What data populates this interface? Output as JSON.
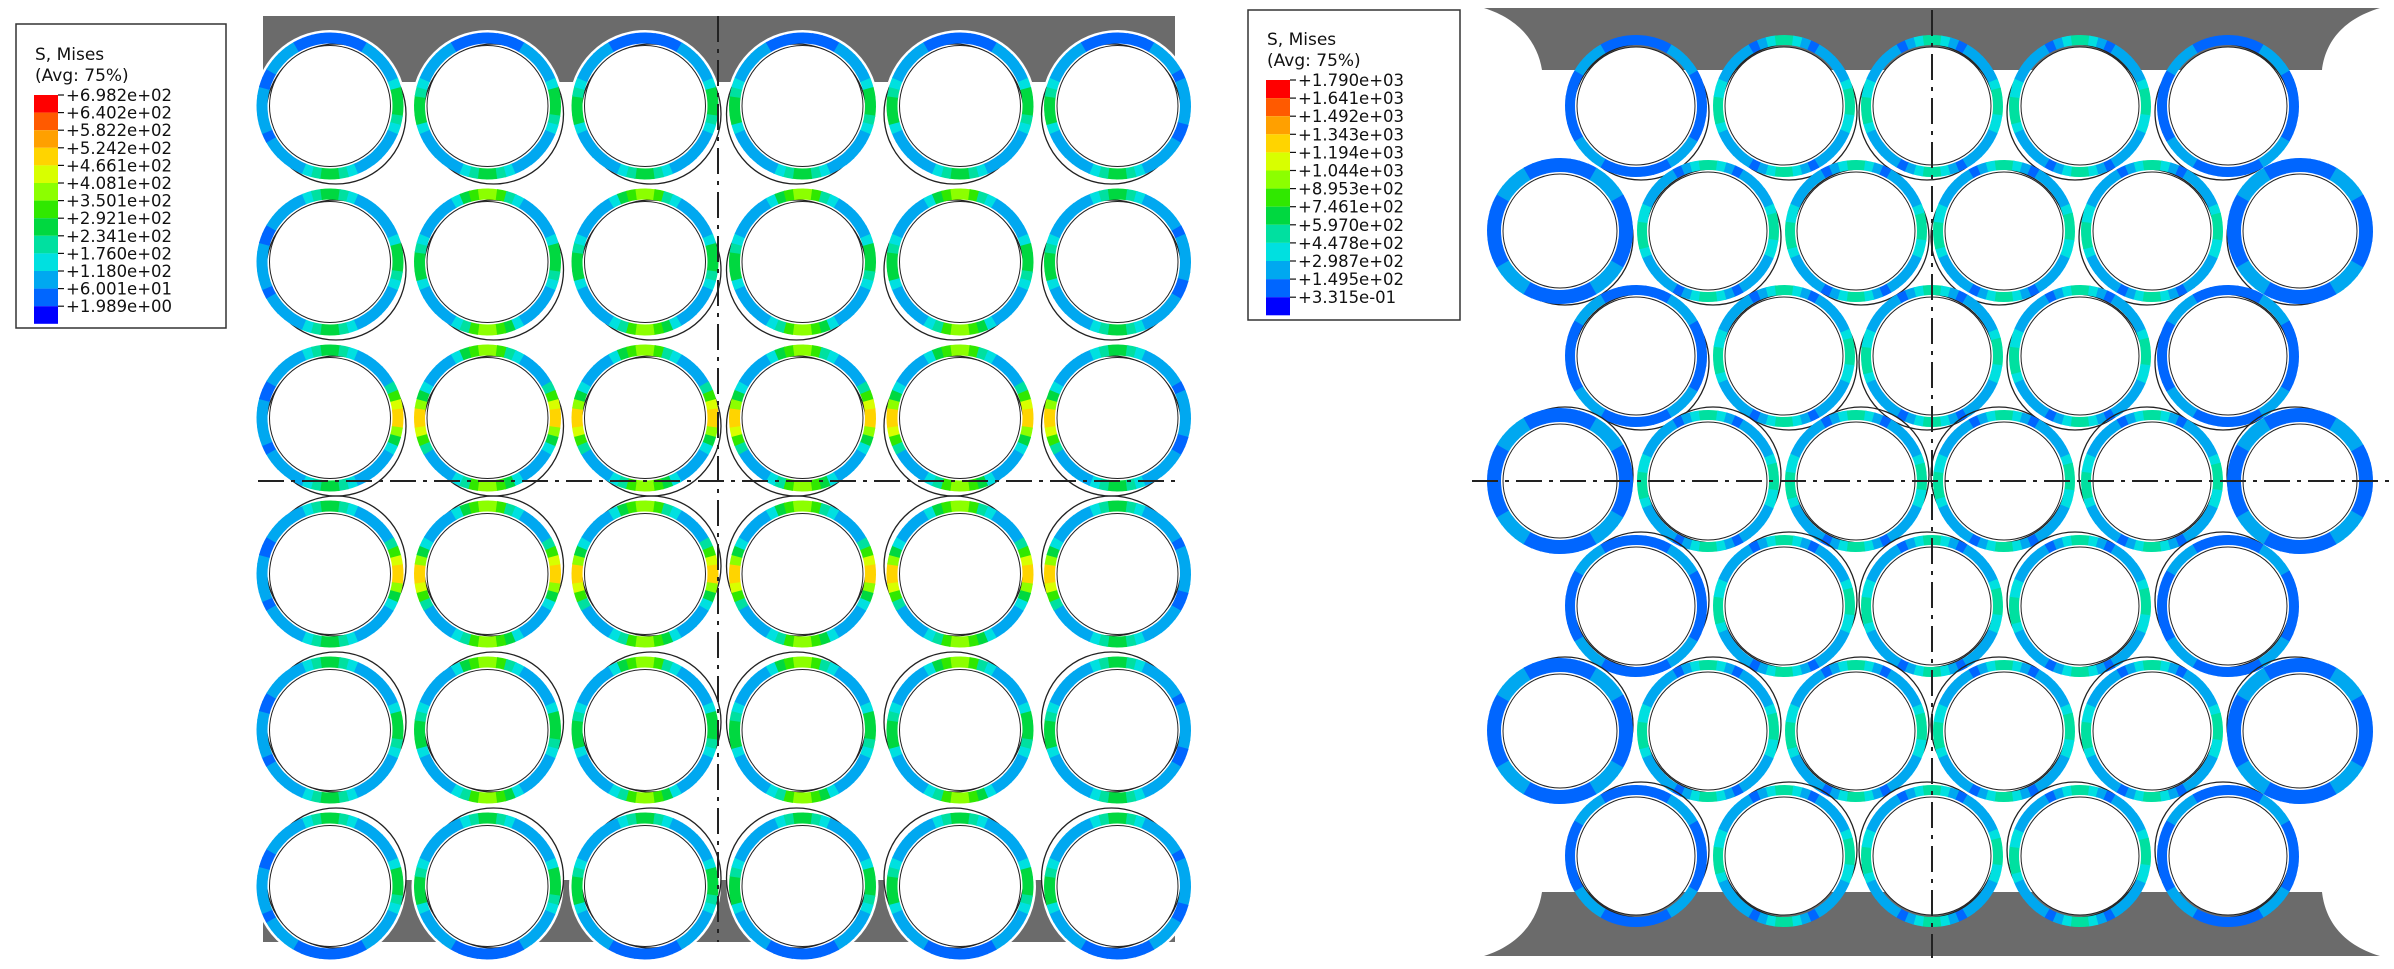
{
  "panels": [
    {
      "id": "square",
      "legend": {
        "title": "S, Mises",
        "subtitle": "(Avg: 75%)",
        "values": [
          "+6.982e+02",
          "+6.402e+02",
          "+5.822e+02",
          "+5.242e+02",
          "+4.661e+02",
          "+4.081e+02",
          "+3.501e+02",
          "+2.921e+02",
          "+2.341e+02",
          "+1.760e+02",
          "+1.180e+02",
          "+6.001e+01",
          "+1.989e+00"
        ],
        "colors": [
          "#ff0000",
          "#ff5a00",
          "#ffa000",
          "#ffd400",
          "#d8ff00",
          "#8cff00",
          "#30e800",
          "#00d840",
          "#00e0a0",
          "#00e0e0",
          "#00a8f0",
          "#0066ff",
          "#0000ff"
        ]
      },
      "grid": {
        "arrangement": "square",
        "rows": 6,
        "cols": 6
      }
    },
    {
      "id": "hexagonal",
      "legend": {
        "title": "S, Mises",
        "subtitle": "(Avg: 75%)",
        "values": [
          "+1.790e+03",
          "+1.641e+03",
          "+1.492e+03",
          "+1.343e+03",
          "+1.194e+03",
          "+1.044e+03",
          "+8.953e+02",
          "+7.461e+02",
          "+5.970e+02",
          "+4.478e+02",
          "+2.987e+02",
          "+1.495e+02",
          "+3.315e-01"
        ],
        "colors": [
          "#ff0000",
          "#ff5a00",
          "#ffa000",
          "#ffd400",
          "#d8ff00",
          "#8cff00",
          "#30e800",
          "#00d840",
          "#00e0a0",
          "#00e0e0",
          "#00a8f0",
          "#0066ff",
          "#0000ff"
        ]
      },
      "grid": {
        "arrangement": "hexagonal",
        "rows": 7,
        "cols_long": 6,
        "cols_short": 5
      }
    }
  ]
}
